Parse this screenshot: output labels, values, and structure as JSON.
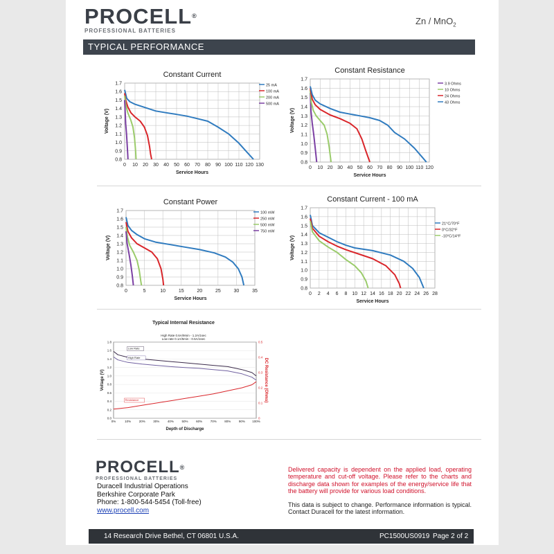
{
  "header": {
    "brand": "PROCELL",
    "reg": "®",
    "subtitle": "PROFESSIONAL BATTERIES",
    "chemistry": "Zn / MnO",
    "chemistry_sub": "2",
    "section": "TYPICAL  PERFORMANCE"
  },
  "colors": {
    "blue": "#2f7bbf",
    "red": "#d9252a",
    "green": "#9acb6a",
    "purple": "#7b3fa3",
    "banner": "#3d444d",
    "notice_red": "#d0102a"
  },
  "chart_data": [
    {
      "type": "line",
      "title": "Constant Current",
      "xlabel": "Service Hours",
      "ylabel": "Voltage (V)",
      "xlim": [
        0,
        130
      ],
      "ylim": [
        0.8,
        1.7
      ],
      "xticks": [
        0,
        10,
        20,
        30,
        40,
        50,
        60,
        70,
        80,
        90,
        100,
        110,
        120,
        130
      ],
      "yticks": [
        0.8,
        0.9,
        1.0,
        1.1,
        1.2,
        1.3,
        1.4,
        1.5,
        1.6,
        1.7
      ],
      "grid": true,
      "legend": "top-right",
      "series": [
        {
          "name": "25 mA",
          "color": "#2f7bbf",
          "points": [
            [
              0,
              1.62
            ],
            [
              2,
              1.52
            ],
            [
              5,
              1.48
            ],
            [
              10,
              1.45
            ],
            [
              20,
              1.41
            ],
            [
              30,
              1.37
            ],
            [
              40,
              1.35
            ],
            [
              50,
              1.33
            ],
            [
              60,
              1.31
            ],
            [
              70,
              1.28
            ],
            [
              80,
              1.25
            ],
            [
              90,
              1.18
            ],
            [
              100,
              1.1
            ],
            [
              110,
              0.99
            ],
            [
              118,
              0.88
            ],
            [
              124,
              0.8
            ]
          ]
        },
        {
          "name": "100 mA",
          "color": "#d9252a",
          "points": [
            [
              0,
              1.58
            ],
            [
              1,
              1.5
            ],
            [
              3,
              1.42
            ],
            [
              6,
              1.35
            ],
            [
              10,
              1.3
            ],
            [
              15,
              1.25
            ],
            [
              19,
              1.18
            ],
            [
              22,
              1.08
            ],
            [
              24,
              0.95
            ],
            [
              25,
              0.86
            ],
            [
              26,
              0.8
            ]
          ]
        },
        {
          "name": "200 mA",
          "color": "#9acb6a",
          "points": [
            [
              0,
              1.55
            ],
            [
              1,
              1.45
            ],
            [
              3,
              1.35
            ],
            [
              6,
              1.26
            ],
            [
              8,
              1.18
            ],
            [
              9.5,
              1.05
            ],
            [
              10.5,
              0.9
            ],
            [
              11,
              0.8
            ]
          ]
        },
        {
          "name": "500 mA",
          "color": "#7b3fa3",
          "points": [
            [
              0,
              1.5
            ],
            [
              0.5,
              1.35
            ],
            [
              1,
              1.22
            ],
            [
              1.8,
              1.1
            ],
            [
              2.5,
              0.95
            ],
            [
              3,
              0.85
            ],
            [
              3.2,
              0.8
            ]
          ]
        }
      ]
    },
    {
      "type": "line",
      "title": "Constant Resistance",
      "xlabel": "Service Hours",
      "ylabel": "Voltage (V)",
      "xlim": [
        0,
        120
      ],
      "ylim": [
        0.8,
        1.7
      ],
      "xticks": [
        0,
        10,
        20,
        30,
        40,
        50,
        60,
        70,
        80,
        90,
        100,
        110,
        120
      ],
      "yticks": [
        0.8,
        0.9,
        1.0,
        1.1,
        1.2,
        1.3,
        1.4,
        1.5,
        1.6,
        1.7
      ],
      "grid": true,
      "legend": "top-right",
      "series": [
        {
          "name": "3.9 Ohms",
          "color": "#7b3fa3",
          "points": [
            [
              0,
              1.55
            ],
            [
              0.8,
              1.35
            ],
            [
              2,
              1.22
            ],
            [
              3.5,
              1.1
            ],
            [
              5,
              0.95
            ],
            [
              6,
              0.85
            ],
            [
              6.5,
              0.8
            ]
          ]
        },
        {
          "name": "10 Ohms",
          "color": "#9acb6a",
          "points": [
            [
              0,
              1.58
            ],
            [
              1,
              1.45
            ],
            [
              3,
              1.36
            ],
            [
              6,
              1.3
            ],
            [
              10,
              1.25
            ],
            [
              14,
              1.2
            ],
            [
              17,
              1.1
            ],
            [
              19,
              0.97
            ],
            [
              20,
              0.88
            ],
            [
              21,
              0.8
            ]
          ]
        },
        {
          "name": "24 Ohms",
          "color": "#d9252a",
          "points": [
            [
              0,
              1.6
            ],
            [
              2,
              1.48
            ],
            [
              5,
              1.42
            ],
            [
              10,
              1.37
            ],
            [
              20,
              1.31
            ],
            [
              30,
              1.27
            ],
            [
              40,
              1.22
            ],
            [
              47,
              1.16
            ],
            [
              52,
              1.05
            ],
            [
              56,
              0.92
            ],
            [
              59,
              0.83
            ],
            [
              60,
              0.8
            ]
          ]
        },
        {
          "name": "43 Ohms",
          "color": "#2f7bbf",
          "points": [
            [
              0,
              1.62
            ],
            [
              2,
              1.53
            ],
            [
              5,
              1.47
            ],
            [
              10,
              1.43
            ],
            [
              20,
              1.38
            ],
            [
              30,
              1.34
            ],
            [
              40,
              1.32
            ],
            [
              50,
              1.3
            ],
            [
              60,
              1.28
            ],
            [
              70,
              1.25
            ],
            [
              78,
              1.2
            ],
            [
              85,
              1.12
            ],
            [
              95,
              1.05
            ],
            [
              105,
              0.95
            ],
            [
              113,
              0.85
            ],
            [
              117,
              0.8
            ]
          ]
        }
      ]
    },
    {
      "type": "line",
      "title": "Constant Power",
      "xlabel": "Service Hours",
      "ylabel": "Voltage (V)",
      "xlim": [
        0,
        35
      ],
      "ylim": [
        0.8,
        1.7
      ],
      "xticks": [
        0,
        5,
        10,
        15,
        20,
        25,
        30,
        35
      ],
      "yticks": [
        0.8,
        0.9,
        1.0,
        1.1,
        1.2,
        1.3,
        1.4,
        1.5,
        1.6,
        1.7
      ],
      "grid": true,
      "legend": "top-right",
      "series": [
        {
          "name": "100 mW",
          "color": "#2f7bbf",
          "points": [
            [
              0,
              1.62
            ],
            [
              0.5,
              1.52
            ],
            [
              1.5,
              1.46
            ],
            [
              3,
              1.41
            ],
            [
              5,
              1.36
            ],
            [
              8,
              1.32
            ],
            [
              12,
              1.29
            ],
            [
              16,
              1.26
            ],
            [
              20,
              1.23
            ],
            [
              24,
              1.19
            ],
            [
              27,
              1.14
            ],
            [
              29,
              1.08
            ],
            [
              30.5,
              1.0
            ],
            [
              31.5,
              0.9
            ],
            [
              32,
              0.8
            ]
          ]
        },
        {
          "name": "250 mW",
          "color": "#d9252a",
          "points": [
            [
              0,
              1.56
            ],
            [
              0.5,
              1.45
            ],
            [
              1.5,
              1.37
            ],
            [
              3,
              1.3
            ],
            [
              5,
              1.25
            ],
            [
              7,
              1.2
            ],
            [
              8.5,
              1.12
            ],
            [
              9.5,
              1.0
            ],
            [
              10,
              0.88
            ],
            [
              10.2,
              0.8
            ]
          ]
        },
        {
          "name": "500 mW",
          "color": "#9acb6a",
          "points": [
            [
              0,
              1.5
            ],
            [
              0.4,
              1.38
            ],
            [
              1,
              1.28
            ],
            [
              2,
              1.2
            ],
            [
              3,
              1.1
            ],
            [
              3.6,
              0.98
            ],
            [
              4,
              0.85
            ],
            [
              4.2,
              0.8
            ]
          ]
        },
        {
          "name": "750 mW",
          "color": "#7b3fa3",
          "points": [
            [
              0,
              1.45
            ],
            [
              0.3,
              1.3
            ],
            [
              0.8,
              1.18
            ],
            [
              1.3,
              1.05
            ],
            [
              1.7,
              0.92
            ],
            [
              2,
              0.8
            ]
          ]
        }
      ]
    },
    {
      "type": "line",
      "title": "Constant Current - 100 mA",
      "xlabel": "Service Hours",
      "ylabel": "Voltage (V)",
      "xlim": [
        0,
        28
      ],
      "ylim": [
        0.8,
        1.7
      ],
      "xticks": [
        0,
        2,
        4,
        6,
        8,
        10,
        12,
        14,
        16,
        18,
        20,
        22,
        24,
        26,
        28
      ],
      "yticks": [
        0.8,
        0.9,
        1.0,
        1.1,
        1.2,
        1.3,
        1.4,
        1.5,
        1.6,
        1.7
      ],
      "grid": true,
      "legend": "top-right",
      "series": [
        {
          "name": "21°C/70°F",
          "color": "#2f7bbf",
          "points": [
            [
              0,
              1.62
            ],
            [
              0.5,
              1.5
            ],
            [
              2,
              1.42
            ],
            [
              4,
              1.37
            ],
            [
              6,
              1.32
            ],
            [
              8,
              1.28
            ],
            [
              10,
              1.25
            ],
            [
              14,
              1.22
            ],
            [
              18,
              1.17
            ],
            [
              21,
              1.1
            ],
            [
              23,
              1.02
            ],
            [
              24.5,
              0.92
            ],
            [
              25.5,
              0.8
            ]
          ]
        },
        {
          "name": "0°C/32°F",
          "color": "#d9252a",
          "points": [
            [
              0,
              1.58
            ],
            [
              0.5,
              1.47
            ],
            [
              2,
              1.38
            ],
            [
              4,
              1.32
            ],
            [
              6,
              1.27
            ],
            [
              8,
              1.23
            ],
            [
              11,
              1.18
            ],
            [
              14,
              1.13
            ],
            [
              17,
              1.05
            ],
            [
              19,
              0.95
            ],
            [
              20,
              0.85
            ],
            [
              20.3,
              0.8
            ]
          ]
        },
        {
          "name": "-10°C/14°F",
          "color": "#9acb6a",
          "points": [
            [
              0,
              1.55
            ],
            [
              0.5,
              1.43
            ],
            [
              2,
              1.33
            ],
            [
              4,
              1.26
            ],
            [
              6,
              1.2
            ],
            [
              8,
              1.12
            ],
            [
              10,
              1.05
            ],
            [
              11.5,
              0.97
            ],
            [
              12.5,
              0.88
            ],
            [
              13,
              0.8
            ]
          ]
        }
      ]
    },
    {
      "type": "line",
      "title": "Typical Internal Resistance",
      "note1": "High Rate 0.6A/9min - 1.2A/1sec",
      "note2": "Low rate 0.1A/5min - 0.5A/1sec",
      "xlabel": "Depth of Discharge",
      "ylabel": "Voltage (V)",
      "y2label": "DC Resistance (Ohms)",
      "xticks": [
        "0%",
        "10%",
        "20%",
        "30%",
        "40%",
        "50%",
        "60%",
        "70%",
        "80%",
        "90%",
        "100%"
      ],
      "yticks": [
        0.0,
        0.2,
        0.4,
        0.6,
        0.8,
        1.0,
        1.2,
        1.4,
        1.6,
        1.8
      ],
      "y2ticks": [
        0,
        0.1,
        0.2,
        0.3,
        0.4,
        0.5
      ],
      "ylim": [
        0,
        1.8
      ],
      "y2lim": [
        0,
        0.5
      ],
      "series": [
        {
          "name": "Low Rate",
          "color": "#3a2a4a",
          "axis": "y",
          "points": [
            [
              0,
              1.58
            ],
            [
              3,
              1.5
            ],
            [
              10,
              1.44
            ],
            [
              20,
              1.4
            ],
            [
              30,
              1.37
            ],
            [
              40,
              1.34
            ],
            [
              50,
              1.31
            ],
            [
              60,
              1.28
            ],
            [
              70,
              1.25
            ],
            [
              80,
              1.22
            ],
            [
              90,
              1.15
            ],
            [
              97,
              1.08
            ],
            [
              100,
              1.0
            ]
          ]
        },
        {
          "name": "High Rate",
          "color": "#7060a0",
          "axis": "y",
          "points": [
            [
              0,
              1.45
            ],
            [
              3,
              1.38
            ],
            [
              10,
              1.32
            ],
            [
              20,
              1.28
            ],
            [
              30,
              1.25
            ],
            [
              40,
              1.22
            ],
            [
              50,
              1.2
            ],
            [
              60,
              1.18
            ],
            [
              70,
              1.15
            ],
            [
              80,
              1.12
            ],
            [
              90,
              1.05
            ],
            [
              97,
              0.97
            ],
            [
              100,
              0.9
            ]
          ]
        },
        {
          "name": "Resistance",
          "color": "#d9252a",
          "axis": "y2",
          "points": [
            [
              0,
              0.06
            ],
            [
              10,
              0.07
            ],
            [
              20,
              0.085
            ],
            [
              30,
              0.1
            ],
            [
              40,
              0.115
            ],
            [
              50,
              0.13
            ],
            [
              60,
              0.145
            ],
            [
              70,
              0.16
            ],
            [
              80,
              0.18
            ],
            [
              90,
              0.2
            ],
            [
              97,
              0.22
            ],
            [
              100,
              0.24
            ]
          ]
        }
      ]
    }
  ],
  "footer_brand": {
    "brand": "PROCELL",
    "reg": "®",
    "subtitle": "PROFESSIONAL BATTERIES",
    "line1": "Duracell Industrial Operations",
    "line2": "Berkshire Corporate Park",
    "line3": "Phone:  1-800-544-5454   (Toll-free)",
    "link": "www.procell.com"
  },
  "notice": {
    "red": "Delivered capacity is dependent on the applied load, operating temperature and cut-off voltage. Please refer to the charts and discharge data shown for examples of the energy/service life that the battery will provide for various load conditions.",
    "black": "This data is subject to change. Performance information is typical. Contact Duracell for the latest information."
  },
  "footer": {
    "address": "14 Research Drive Bethel,  CT  06801 U.S.A.",
    "code": "PC1500US0919",
    "page": "Page 2 of 2"
  }
}
